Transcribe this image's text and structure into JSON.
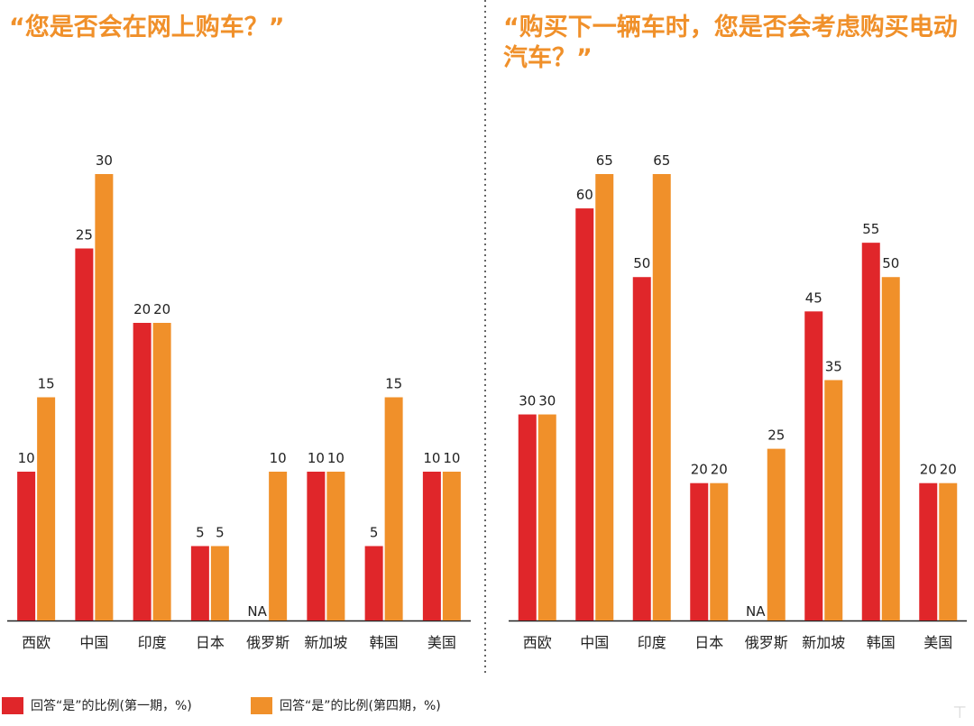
{
  "chart_data": [
    {
      "type": "bar",
      "title": "“您是否会在网上购车？”",
      "categories": [
        "西欧",
        "中国",
        "印度",
        "日本",
        "俄罗斯",
        "新加坡",
        "韩国",
        "美国"
      ],
      "series": [
        {
          "name": "回答“是”的比例(第一期，%)",
          "color": "#E0262A",
          "values": [
            10,
            25,
            20,
            5,
            null,
            10,
            5,
            10
          ]
        },
        {
          "name": "回答“是”的比例(第四期，%)",
          "color": "#F0902A",
          "values": [
            15,
            30,
            20,
            5,
            10,
            10,
            15,
            10
          ]
        }
      ],
      "missing_label": "NA",
      "ylim": [
        0,
        30
      ],
      "grid": false,
      "legend": "bottom"
    },
    {
      "type": "bar",
      "title": "“购买下一辆车时，您是否会考虑购买电动汽车？”",
      "categories": [
        "西欧",
        "中国",
        "印度",
        "日本",
        "俄罗斯",
        "新加坡",
        "韩国",
        "美国"
      ],
      "series": [
        {
          "name": "回答“是”的比例(第一期，%)",
          "color": "#E0262A",
          "values": [
            30,
            60,
            50,
            20,
            null,
            45,
            55,
            20
          ]
        },
        {
          "name": "回答“是”的比例(第四期，%)",
          "color": "#F0902A",
          "values": [
            30,
            65,
            65,
            20,
            25,
            35,
            50,
            20
          ]
        }
      ],
      "missing_label": "NA",
      "ylim": [
        0,
        65
      ],
      "grid": false,
      "legend": "bottom"
    }
  ],
  "legend": {
    "series1_label": "回答“是”的比例(第一期，%)",
    "series2_label": "回答“是”的比例(第四期，%)",
    "series1_color": "#E0262A",
    "series2_color": "#F0902A"
  }
}
